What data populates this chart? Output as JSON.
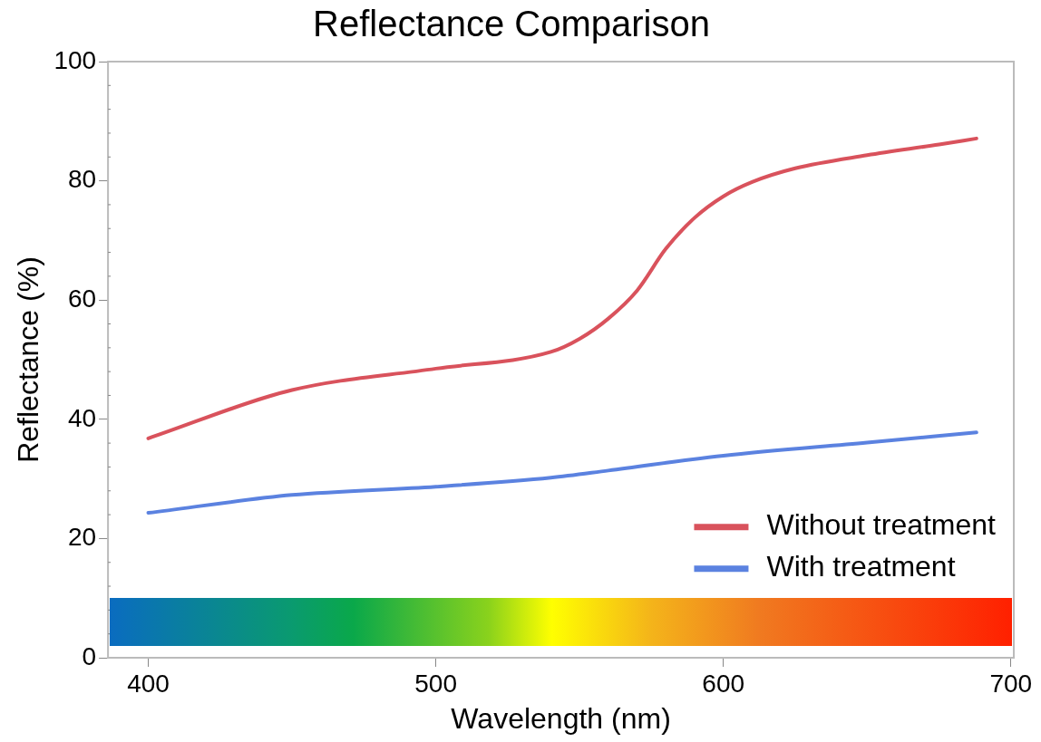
{
  "chart_data": {
    "type": "line",
    "title": "Reflectance Comparison",
    "xlabel": "Wavelength (nm)",
    "ylabel": "Reflectance (%)",
    "xlim": [
      386,
      701
    ],
    "xticks": [
      400,
      500,
      600,
      700
    ],
    "ylim": [
      0,
      100
    ],
    "yticks": [
      0,
      20,
      40,
      60,
      80,
      100
    ],
    "grid": false,
    "legend": "bottom right",
    "marker": "none",
    "line_style": "solid",
    "series": [
      {
        "name": "Without treatment",
        "color": "#d9525c",
        "x": [
          400,
          450,
          500,
          540,
          550,
          560,
          570,
          580,
          590,
          600,
          610,
          625,
          650,
          675,
          688
        ],
        "values": [
          36.8,
          44.9,
          48.5,
          51.3,
          53.5,
          56.9,
          61.6,
          68.6,
          73.8,
          77.4,
          79.8,
          82.1,
          84.3,
          86.1,
          87.1
        ]
      },
      {
        "name": "With treatment",
        "color": "#5b82e0",
        "x": [
          400,
          450,
          500,
          540,
          560,
          600,
          650,
          688
        ],
        "values": [
          24.3,
          27.3,
          28.7,
          30.2,
          31.4,
          33.9,
          36.1,
          37.8
        ]
      }
    ]
  }
}
